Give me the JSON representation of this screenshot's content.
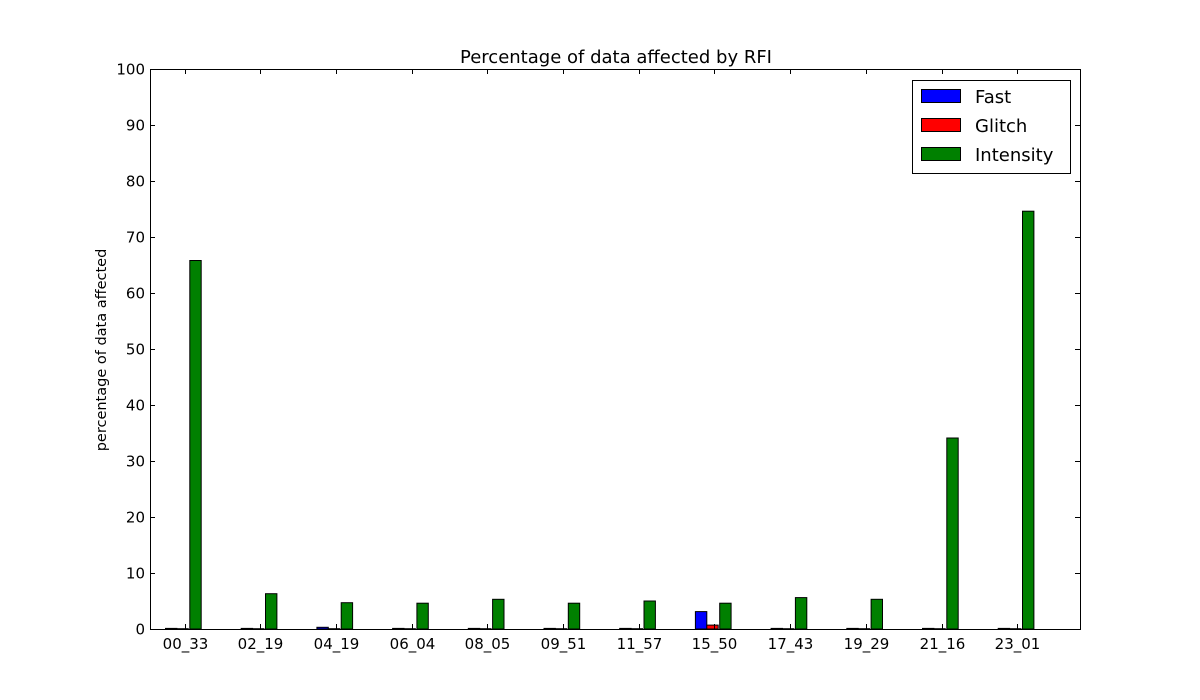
{
  "chart_data": {
    "type": "bar",
    "title": "Percentage of data affected by RFI",
    "xlabel": "",
    "ylabel": "percentage of data affected",
    "ylim": [
      0,
      100
    ],
    "yticks": [
      "0",
      "10",
      "20",
      "30",
      "40",
      "50",
      "60",
      "70",
      "80",
      "90",
      "100"
    ],
    "categories": [
      "00_33",
      "02_19",
      "04_19",
      "06_04",
      "08_05",
      "09_51",
      "11_57",
      "15_50",
      "17_43",
      "19_29",
      "21_16",
      "23_01"
    ],
    "series": [
      {
        "name": "Fast",
        "color": "#0000ff",
        "values": [
          0.1,
          0.1,
          0.3,
          0.1,
          0.1,
          0.1,
          0.1,
          3.1,
          0.1,
          0.1,
          0.1,
          0.1
        ]
      },
      {
        "name": "Glitch",
        "color": "#ff0000",
        "values": [
          0.05,
          0.05,
          0.05,
          0.05,
          0.05,
          0.05,
          0.05,
          0.7,
          0.05,
          0.05,
          0.05,
          0.05
        ]
      },
      {
        "name": "Intensity",
        "color": "#008000",
        "values": [
          65.8,
          6.3,
          4.7,
          4.6,
          5.3,
          4.6,
          5.0,
          4.6,
          5.6,
          5.3,
          34.1,
          74.6
        ]
      }
    ],
    "grid": false,
    "legend_position": "top-right"
  }
}
